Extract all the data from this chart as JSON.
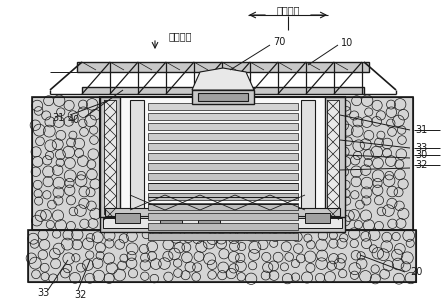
{
  "bg_color": "#ffffff",
  "lc": "#3a3a3a",
  "dc": "#1a1a1a",
  "fc_white": "#f8f8f8",
  "fc_light": "#e8e8e8",
  "fc_med": "#c8c8c8",
  "fc_dark": "#a0a0a0",
  "fc_gravel": "#d5d5d5",
  "figsize": [
    4.43,
    3.08
  ],
  "dpi": 100,
  "labels": {
    "hz": "水平方向",
    "vt": "竖直方向",
    "n10": "10",
    "n20": "20",
    "n30": "30",
    "n31a": "31",
    "n31b": "31",
    "n32a": "32",
    "n32b": "32",
    "n33a": "33",
    "n33b": "33",
    "n40": "40",
    "n70": "70"
  }
}
